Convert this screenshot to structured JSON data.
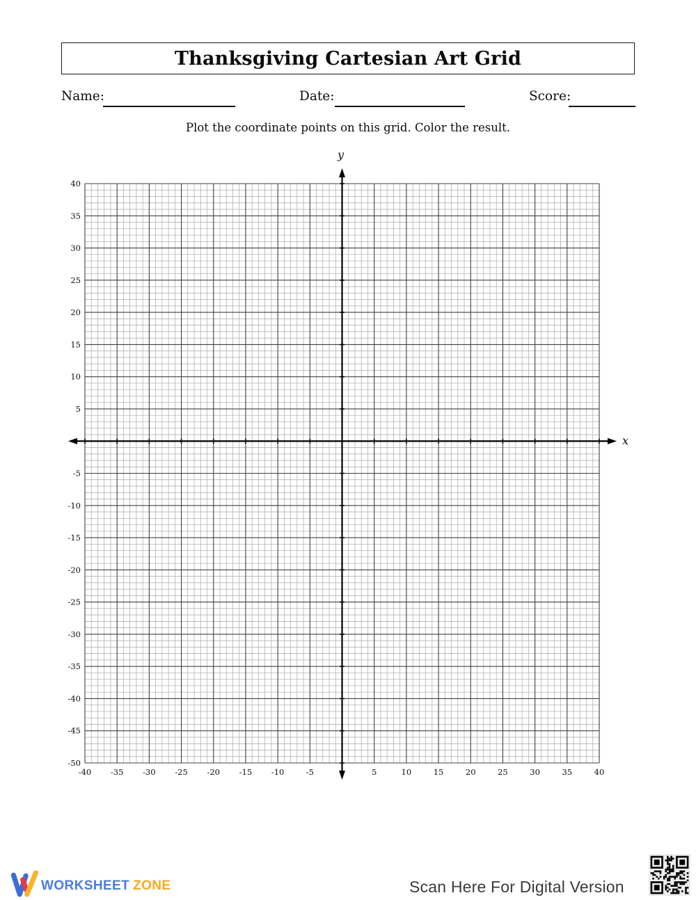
{
  "header": {
    "title": "Thanksgiving Cartesian Art Grid",
    "name_label": "Name:",
    "date_label": "Date:",
    "score_label": "Score:",
    "instruction": "Plot the coordinate points on this grid. Color the result."
  },
  "grid": {
    "type": "cartesian-grid",
    "x_axis_label": "x",
    "y_axis_label": "y",
    "x_min": -40,
    "x_max": 40,
    "y_min": -50,
    "y_max": 40,
    "minor_step": 1,
    "major_step": 5,
    "x_tick_labels": [
      "-40",
      "-35",
      "-30",
      "-25",
      "-20",
      "-15",
      "-10",
      "-5",
      "5",
      "10",
      "15",
      "20",
      "25",
      "30",
      "35",
      "40"
    ],
    "y_tick_labels": [
      "40",
      "35",
      "30",
      "25",
      "20",
      "15",
      "10",
      "5",
      "-5",
      "-10",
      "-15",
      "-20",
      "-25",
      "-30",
      "-35",
      "-40",
      "-45",
      "-50"
    ],
    "colors": {
      "minor": "#a8a8a8",
      "major": "#414141",
      "axis": "#000000",
      "label": "#0d0d0d"
    }
  },
  "footer": {
    "brand_word1": "WORKSHEET",
    "brand_word2": "ZONE",
    "brand_colors": {
      "word1": "#4a7be0",
      "word2": "#f6ac1d"
    },
    "scan_text": "Scan Here For Digital Version",
    "qr_icon": "qr-code",
    "logo_icon": "worksheetzone-w-logo",
    "logo_colors": {
      "blue": "#3e6bd7",
      "red": "#e63950",
      "yellow": "#f7b32b"
    }
  }
}
